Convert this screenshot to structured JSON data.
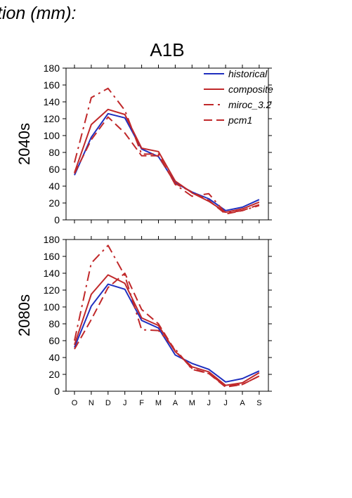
{
  "page": {
    "header_text": "tion (mm):"
  },
  "chart_data": {
    "type": "line",
    "title": "A1B",
    "categories": [
      "O",
      "N",
      "D",
      "J",
      "F",
      "M",
      "A",
      "M",
      "J",
      "J",
      "A",
      "S"
    ],
    "ylim": [
      0,
      180
    ],
    "yticks": [
      0,
      20,
      40,
      60,
      80,
      100,
      120,
      140,
      160,
      180
    ],
    "legend": {
      "position": "top-right",
      "entries": [
        "historical",
        "composite",
        "miroc_3.2",
        "pcm1"
      ]
    },
    "series_styles": [
      {
        "name": "historical",
        "color": "#1f2fbf",
        "dash": "solid"
      },
      {
        "name": "composite",
        "color": "#c0282a",
        "dash": "solid"
      },
      {
        "name": "miroc_3.2",
        "color": "#c0282a",
        "dash": "dashdot"
      },
      {
        "name": "pcm1",
        "color": "#c0282a",
        "dash": "dash"
      }
    ],
    "panels": [
      {
        "ylabel": "2040s",
        "series": [
          {
            "name": "historical",
            "values": [
              53,
              98,
              126,
              121,
              84,
              75,
              44,
              33,
              25,
              11,
              15,
              24
            ]
          },
          {
            "name": "composite",
            "values": [
              56,
              113,
              131,
              125,
              85,
              81,
              46,
              32,
              22,
              9,
              13,
              21
            ]
          },
          {
            "name": "miroc_3.2",
            "values": [
              68,
              145,
              156,
              130,
              78,
              78,
              42,
              28,
              31,
              8,
              11,
              17
            ]
          },
          {
            "name": "pcm1",
            "values": [
              55,
              95,
              122,
              103,
              76,
              76,
              43,
              33,
              23,
              7,
              11,
              18
            ]
          }
        ]
      },
      {
        "ylabel": "2080s",
        "series": [
          {
            "name": "historical",
            "values": [
              52,
              101,
              127,
              121,
              84,
              75,
              43,
              33,
              26,
              11,
              15,
              24
            ]
          },
          {
            "name": "composite",
            "values": [
              55,
              115,
              138,
              128,
              87,
              78,
              47,
              29,
              23,
              7,
              10,
              22
            ]
          },
          {
            "name": "miroc_3.2",
            "values": [
              60,
              152,
              173,
              137,
              73,
              72,
              50,
              26,
              21,
              6,
              8,
              18
            ]
          },
          {
            "name": "pcm1",
            "values": [
              50,
              85,
              123,
              140,
              97,
              80,
              48,
              27,
              21,
              5,
              8,
              18
            ]
          }
        ]
      }
    ]
  }
}
